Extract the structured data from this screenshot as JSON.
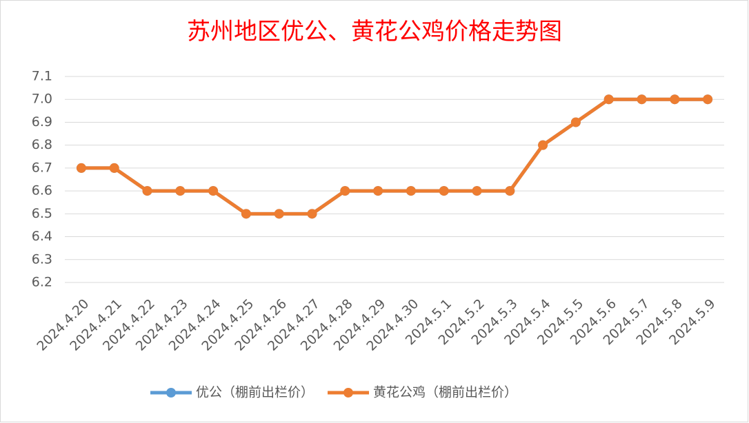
{
  "chart_data": {
    "type": "line",
    "title": "苏州地区优公、黄花公鸡价格走势图",
    "categories": [
      "2024.4.20",
      "2024.4.21",
      "2024.4.22",
      "2024.4.23",
      "2024.4.24",
      "2024.4.25",
      "2024.4.26",
      "2024.4.27",
      "2024.4.28",
      "2024.4.29",
      "2024.4.30",
      "2024.5.1",
      "2024.5.2",
      "2024.5.3",
      "2024.5.4",
      "2024.5.5",
      "2024.5.6",
      "2024.5.7",
      "2024.5.8",
      "2024.5.9"
    ],
    "series": [
      {
        "name": "优公（棚前出栏价）",
        "color": "#5b9bd5",
        "values": [
          6.7,
          6.7,
          6.6,
          6.6,
          6.6,
          6.5,
          6.5,
          6.5,
          6.6,
          6.6,
          6.6,
          6.6,
          6.6,
          6.6,
          6.8,
          6.9,
          7.0,
          7.0,
          7.0,
          7.0
        ]
      },
      {
        "name": "黄花公鸡（棚前出栏价）",
        "color": "#ed7d31",
        "values": [
          6.7,
          6.7,
          6.6,
          6.6,
          6.6,
          6.5,
          6.5,
          6.5,
          6.6,
          6.6,
          6.6,
          6.6,
          6.6,
          6.6,
          6.8,
          6.9,
          7.0,
          7.0,
          7.0,
          7.0
        ]
      }
    ],
    "ylim": [
      6.2,
      7.1
    ],
    "yticks": [
      6.2,
      6.3,
      6.4,
      6.5,
      6.6,
      6.7,
      6.8,
      6.9,
      {
        "value": 7,
        "label": "7.0"
      },
      7.1
    ],
    "grid": true,
    "legend": "bottom"
  }
}
